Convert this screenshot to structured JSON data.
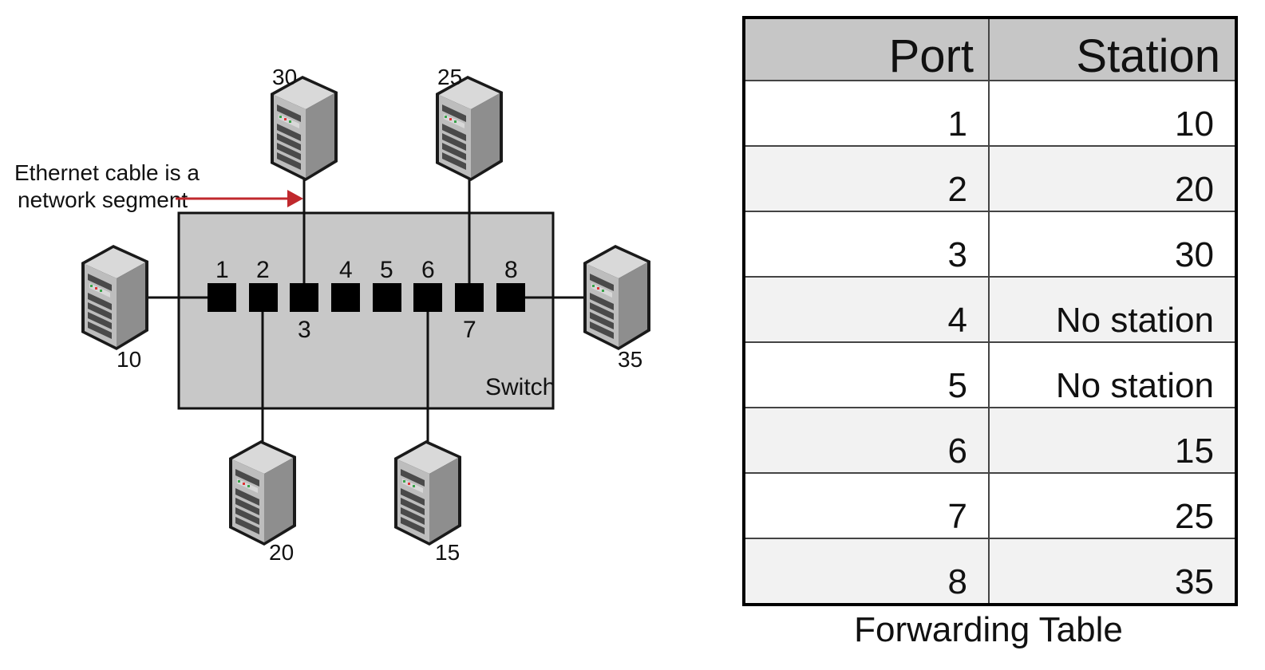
{
  "annotation": {
    "line1": "Ethernet cable is a",
    "line2": "network segment"
  },
  "switch_label": "Switch",
  "ports": [
    "1",
    "2",
    "3",
    "4",
    "5",
    "6",
    "7",
    "8"
  ],
  "stations": {
    "s10": "10",
    "s20": "20",
    "s30": "30",
    "s25": "25",
    "s15": "15",
    "s35": "35"
  },
  "colors": {
    "arrow": "#c0282d",
    "switch_fill": "#c8c8c8",
    "table_header": "#c6c6c6",
    "server_body": "#9c9c9c"
  },
  "icon": "server-tower-icon",
  "table": {
    "headers": [
      "Port",
      "Station"
    ],
    "rows": [
      [
        "1",
        "10"
      ],
      [
        "2",
        "20"
      ],
      [
        "3",
        "30"
      ],
      [
        "4",
        "No station"
      ],
      [
        "5",
        "No station"
      ],
      [
        "6",
        "15"
      ],
      [
        "7",
        "25"
      ],
      [
        "8",
        "35"
      ]
    ],
    "caption": "Forwarding Table"
  }
}
